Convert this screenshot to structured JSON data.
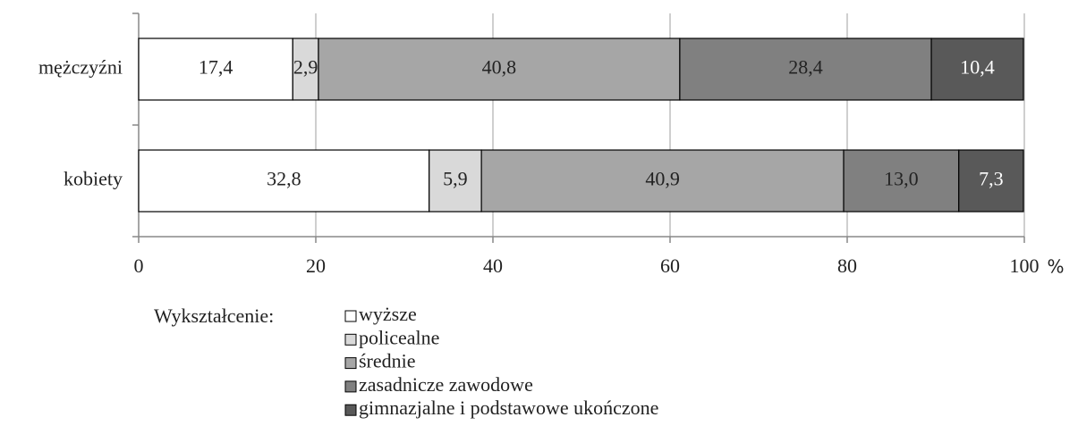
{
  "chart_data": {
    "type": "stacked_barh",
    "categories": [
      "mężczyźni",
      "kobiety"
    ],
    "series": [
      {
        "name": "wyższe",
        "color": "#ffffff",
        "values": [
          17.4,
          32.8
        ],
        "value_labels": [
          "17,4",
          "32,8"
        ]
      },
      {
        "name": "policealne",
        "color": "#d9d9d9",
        "values": [
          2.9,
          5.9
        ],
        "value_labels": [
          "2,9",
          "5,9"
        ]
      },
      {
        "name": "średnie",
        "color": "#a6a6a6",
        "values": [
          40.8,
          40.9
        ],
        "value_labels": [
          "40,8",
          "40,9"
        ]
      },
      {
        "name": "zasadnicze zawodowe",
        "color": "#808080",
        "values": [
          28.4,
          13.0
        ],
        "value_labels": [
          "28,4",
          "13,0"
        ]
      },
      {
        "name": "gimnazjalne i podstawowe ukończone",
        "color": "#595959",
        "values": [
          10.4,
          7.3
        ],
        "value_labels": [
          "10,4",
          "7,3"
        ]
      }
    ],
    "xlim": [
      0,
      100
    ],
    "xticks": [
      0,
      20,
      40,
      60,
      80,
      100
    ],
    "xlabel": "%",
    "grid": true,
    "legend_title": "Wykształcenie:"
  }
}
